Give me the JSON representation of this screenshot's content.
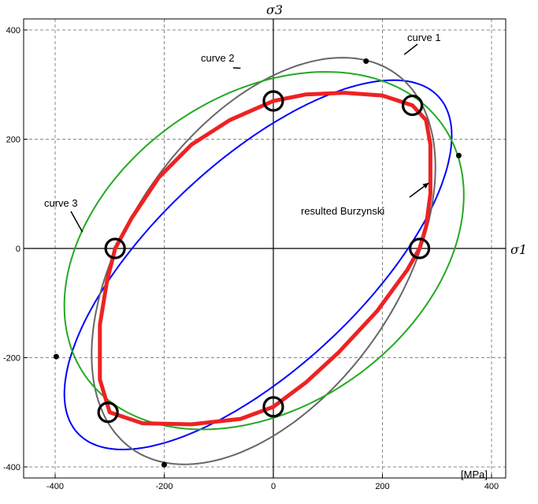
{
  "chart_data": {
    "type": "line",
    "title": "",
    "xlabel": "σ1",
    "ylabel": "σ3",
    "unit_label": "[MPa]",
    "xlim": [
      -420,
      420
    ],
    "ylim": [
      -410,
      400
    ],
    "x_ticks": [
      -400,
      -200,
      0,
      200,
      400
    ],
    "y_ticks": [
      -400,
      -200,
      0,
      200,
      400
    ],
    "x_tick_labels": [
      "-400",
      "-200",
      "0",
      "200",
      "400"
    ],
    "y_tick_labels": [
      "-400",
      "-200",
      "0",
      "200",
      "400"
    ],
    "grid": true,
    "series": [
      {
        "name": "curve 1",
        "color": "#0000ff",
        "ellipse": {
          "cx": -28,
          "cy": -30,
          "a": 452,
          "b": 190,
          "angle_deg": 43
        }
      },
      {
        "name": "curve 2",
        "color": "#666666",
        "ellipse": {
          "cx": -18,
          "cy": -23,
          "a": 420,
          "b": 248,
          "angle_deg": 55
        }
      },
      {
        "name": "curve 3",
        "color": "#22aa22",
        "ellipse": {
          "cx": -17,
          "cy": -4,
          "a": 400,
          "b": 285,
          "angle_deg": 35
        }
      },
      {
        "name": "resulted Burzynski",
        "color": "#ee2222",
        "points": [
          [
            -290,
            0
          ],
          [
            -260,
            55
          ],
          [
            -210,
            130
          ],
          [
            -150,
            190
          ],
          [
            -80,
            235
          ],
          [
            0,
            270
          ],
          [
            60,
            282
          ],
          [
            130,
            285
          ],
          [
            200,
            280
          ],
          [
            255,
            262
          ],
          [
            280,
            235
          ],
          [
            288,
            190
          ],
          [
            288,
            100
          ],
          [
            280,
            40
          ],
          [
            268,
            0
          ],
          [
            245,
            -40
          ],
          [
            190,
            -115
          ],
          [
            120,
            -190
          ],
          [
            60,
            -245
          ],
          [
            0,
            -290
          ],
          [
            -60,
            -312
          ],
          [
            -150,
            -322
          ],
          [
            -240,
            -320
          ],
          [
            -300,
            -300
          ],
          [
            -318,
            -240
          ],
          [
            -318,
            -140
          ],
          [
            -305,
            -60
          ],
          [
            -290,
            0
          ]
        ]
      }
    ],
    "marked_points": [
      [
        -290,
        0
      ],
      [
        0,
        270
      ],
      [
        255,
        262
      ],
      [
        268,
        0
      ],
      [
        0,
        -290
      ],
      [
        -303,
        -300
      ]
    ],
    "intersection_points": [
      [
        170,
        343
      ],
      [
        340,
        170
      ],
      [
        -398,
        -198
      ],
      [
        -200,
        -396
      ]
    ],
    "annotations": [
      {
        "text": "curve 1",
        "target": [
          240,
          355
        ]
      },
      {
        "text": "curve 2",
        "target": [
          -60,
          330
        ]
      },
      {
        "text": "curve 3",
        "target": [
          -350,
          30
        ]
      },
      {
        "text": "resulted Burzynski",
        "target": [
          285,
          120
        ]
      }
    ]
  }
}
